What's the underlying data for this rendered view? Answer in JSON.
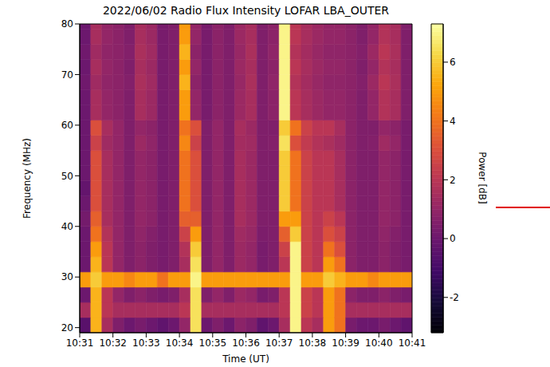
{
  "chart_data": {
    "type": "heatmap",
    "title": "2022/06/02 Radio Flux Intensity LOFAR LBA_OUTER",
    "x_label": "Time (UT)",
    "y_label": "Frequency (MHz)",
    "xlim": [
      37860,
      38460
    ],
    "xticks": [
      {
        "value": 37860,
        "label": "10:31"
      },
      {
        "value": 37920,
        "label": "10:32"
      },
      {
        "value": 37980,
        "label": "10:33"
      },
      {
        "value": 38040,
        "label": "10:34"
      },
      {
        "value": 38100,
        "label": "10:35"
      },
      {
        "value": 38160,
        "label": "10:36"
      },
      {
        "value": 38220,
        "label": "10:37"
      },
      {
        "value": 38280,
        "label": "10:38"
      },
      {
        "value": 38340,
        "label": "10:39"
      },
      {
        "value": 38400,
        "label": "10:40"
      },
      {
        "value": 38460,
        "label": "10:41"
      }
    ],
    "ylim": [
      19,
      80
    ],
    "yticks": [
      20,
      30,
      40,
      50,
      60,
      70,
      80
    ],
    "x_bins": [
      37860,
      37880,
      37900,
      37920,
      37940,
      37960,
      37980,
      38000,
      38020,
      38040,
      38060,
      38080,
      38100,
      38120,
      38140,
      38160,
      38180,
      38200,
      38220,
      38240,
      38260,
      38280,
      38300,
      38320,
      38340,
      38360,
      38380,
      38400,
      38420,
      38440,
      38460
    ],
    "y_bins": [
      19,
      22,
      25,
      28,
      31,
      34,
      37,
      40,
      43,
      46,
      49,
      52,
      55,
      58,
      61,
      64,
      67,
      70,
      73,
      76,
      79,
      80
    ],
    "z": [
      [
        -0.5,
        5.5,
        1.5,
        0.5,
        0,
        0.3,
        0,
        -0.3,
        0,
        1,
        6.5,
        0,
        0.5,
        0,
        0.8,
        0.5,
        -0.3,
        0,
        1.5,
        7,
        2,
        1.5,
        5,
        4,
        0.3,
        0,
        0,
        0.3,
        0,
        -0.3
      ],
      [
        1.5,
        5.5,
        2,
        1.5,
        1.5,
        1.5,
        1.5,
        1.5,
        1.5,
        2,
        6.5,
        1.5,
        1.5,
        1.5,
        1.5,
        1.5,
        1.5,
        1.5,
        2,
        7,
        2.5,
        2,
        5,
        4,
        1.5,
        1.5,
        1.5,
        1.5,
        1.5,
        1.5
      ],
      [
        0,
        5.5,
        2,
        1,
        0.5,
        0.8,
        0.5,
        0.3,
        0.5,
        1.5,
        6.5,
        0.5,
        1,
        0.5,
        1.2,
        1,
        0.3,
        0.5,
        2,
        7,
        2.5,
        2,
        5,
        4,
        0.8,
        0.5,
        0.5,
        0.8,
        0.5,
        0.3
      ],
      [
        5,
        6,
        5,
        5,
        4.5,
        5,
        5,
        4,
        5,
        5,
        7,
        5,
        5,
        5,
        5,
        5,
        5,
        5,
        5,
        7,
        5,
        5,
        6,
        5.5,
        5,
        5,
        4.5,
        5,
        5,
        5
      ],
      [
        0,
        5.5,
        2,
        1,
        0.5,
        0.8,
        0.5,
        0.3,
        0.5,
        1.5,
        6.5,
        0.5,
        1,
        0.5,
        1.2,
        1,
        0.3,
        0.5,
        2,
        7,
        2.5,
        2,
        5,
        4,
        0.8,
        0.5,
        0.5,
        0.8,
        0.5,
        0.3
      ],
      [
        0,
        5,
        2,
        1,
        0.5,
        0.8,
        0.5,
        0.3,
        0.5,
        1.8,
        6,
        0.5,
        1,
        0.5,
        1.2,
        1,
        0.3,
        0.5,
        2.5,
        7,
        2.5,
        2,
        4,
        3,
        0.8,
        0.5,
        0.5,
        0.8,
        0.5,
        0.3
      ],
      [
        0,
        4,
        1.8,
        1,
        0.5,
        0.9,
        0.6,
        0.3,
        0.5,
        2.5,
        5,
        0.5,
        1,
        0.5,
        1.3,
        1.1,
        0.4,
        0.5,
        3.5,
        6,
        2.5,
        2,
        3,
        2.5,
        0.8,
        0.5,
        0.5,
        0.9,
        0.6,
        0.3
      ],
      [
        0.2,
        3.5,
        1.5,
        1,
        0.5,
        1,
        0.8,
        0.3,
        0.5,
        3.5,
        3.5,
        0.5,
        1,
        0.5,
        1.5,
        1.2,
        0.5,
        0.5,
        5,
        5,
        2.5,
        2,
        2.5,
        2,
        0.8,
        0.5,
        0.5,
        1,
        0.8,
        0.3
      ],
      [
        0,
        3,
        1.5,
        1,
        0.5,
        1,
        0.8,
        0.3,
        0.5,
        4,
        3,
        0.5,
        1,
        0.5,
        1.5,
        1.2,
        0.5,
        0.5,
        6,
        4,
        2.5,
        2,
        2,
        1.5,
        0.8,
        0.5,
        0.5,
        1,
        0.8,
        0.3
      ],
      [
        -0.2,
        3,
        1.5,
        1,
        0.5,
        1,
        0.8,
        0.3,
        0.5,
        4,
        3,
        0.5,
        1,
        0.5,
        1.5,
        1.2,
        0.5,
        0.5,
        6,
        4,
        2.5,
        2,
        2,
        1.5,
        0.8,
        0.5,
        0.5,
        1,
        0.8,
        0.3
      ],
      [
        0,
        3,
        1.5,
        1,
        0.5,
        1,
        0.8,
        0.3,
        0.5,
        4,
        3,
        0.5,
        1,
        0.5,
        1.5,
        1.2,
        0.5,
        0.5,
        6,
        4,
        2.5,
        2,
        2,
        1.5,
        0.8,
        0.5,
        0.5,
        1,
        0.8,
        0.3
      ],
      [
        0,
        3,
        1.5,
        1,
        0.5,
        1,
        0.8,
        0.3,
        0.5,
        4,
        3,
        0.5,
        1,
        0.5,
        1.5,
        1.2,
        0.5,
        0.5,
        6,
        4,
        2.5,
        2,
        2,
        1.5,
        0.8,
        0.5,
        0.5,
        1,
        0.8,
        0.3
      ],
      [
        0,
        2.5,
        1.3,
        1,
        0.5,
        1.2,
        0.9,
        0.3,
        0.5,
        4.5,
        2.5,
        0.5,
        1,
        0.5,
        1.4,
        1.3,
        0.5,
        0.6,
        6.5,
        3,
        2.2,
        1.8,
        1.6,
        1.3,
        0.8,
        0.5,
        0.6,
        1.3,
        1,
        0.3
      ],
      [
        0,
        3,
        1.5,
        1,
        0.5,
        1,
        0.8,
        0.3,
        0.5,
        4,
        3,
        0.5,
        1,
        0.5,
        1.5,
        1.2,
        0.5,
        0.5,
        6,
        4,
        2.5,
        2,
        2,
        1.5,
        0.8,
        0.5,
        0.5,
        1,
        0.8,
        0.3
      ],
      [
        0,
        1.5,
        1,
        0.8,
        0.5,
        1.5,
        1.2,
        0.3,
        0.5,
        5,
        1,
        0.3,
        0.8,
        0.5,
        1.2,
        1.5,
        0.5,
        0.8,
        7,
        2,
        1.5,
        1.2,
        1,
        1,
        0.8,
        0.5,
        1,
        1.8,
        1.5,
        0.5
      ],
      [
        0,
        1.5,
        1,
        0.8,
        0.5,
        1.5,
        1.2,
        0.3,
        0.5,
        5,
        1,
        0.3,
        0.8,
        0.5,
        1.2,
        1.5,
        0.5,
        0.8,
        7,
        2,
        1.5,
        1.2,
        1,
        1,
        0.8,
        0.5,
        1,
        1.8,
        1.5,
        0.5
      ],
      [
        0.1,
        1.3,
        0.9,
        0.8,
        0.6,
        1.6,
        1.3,
        0.3,
        0.5,
        5.5,
        0.8,
        0.3,
        0.8,
        0.5,
        1.1,
        1.6,
        0.5,
        0.9,
        7,
        1.8,
        1.4,
        1.1,
        0.9,
        0.9,
        0.8,
        0.6,
        1.2,
        2,
        1.6,
        0.5
      ],
      [
        0,
        1.5,
        1,
        0.8,
        0.5,
        1.5,
        1.2,
        0.3,
        0.5,
        5,
        1,
        0.3,
        0.8,
        0.5,
        1.2,
        1.5,
        0.5,
        0.8,
        7,
        2,
        1.5,
        1.2,
        1,
        1,
        0.8,
        0.5,
        1,
        1.8,
        1.5,
        0.5
      ],
      [
        0.1,
        1.3,
        0.9,
        0.8,
        0.6,
        1.6,
        1.3,
        0.3,
        0.5,
        5.5,
        0.8,
        0.3,
        0.8,
        0.5,
        1.1,
        1.6,
        0.5,
        0.9,
        7,
        1.8,
        1.4,
        1.1,
        0.9,
        0.9,
        0.8,
        0.6,
        1.2,
        2,
        1.6,
        0.5
      ],
      [
        0,
        1.5,
        1,
        0.8,
        0.5,
        1.5,
        1.2,
        0.3,
        0.5,
        5,
        1,
        0.3,
        0.8,
        0.5,
        1.2,
        1.5,
        0.5,
        0.8,
        7,
        2,
        1.5,
        1.2,
        1,
        1,
        0.8,
        0.5,
        1,
        1.8,
        1.5,
        0.5
      ],
      [
        0,
        1.5,
        1,
        0.8,
        0.5,
        1.5,
        1.2,
        0.3,
        0.5,
        5,
        1,
        0.3,
        0.8,
        0.5,
        1.2,
        1.5,
        0.5,
        0.8,
        7,
        2,
        1.5,
        1.2,
        1,
        1,
        0.8,
        0.5,
        1,
        1.8,
        1.5,
        0.5
      ]
    ],
    "colorbar": {
      "range": [
        -3.2,
        7.3
      ],
      "ticks": [
        -2,
        0,
        2,
        4,
        6
      ],
      "label": "Power [dB]"
    }
  }
}
